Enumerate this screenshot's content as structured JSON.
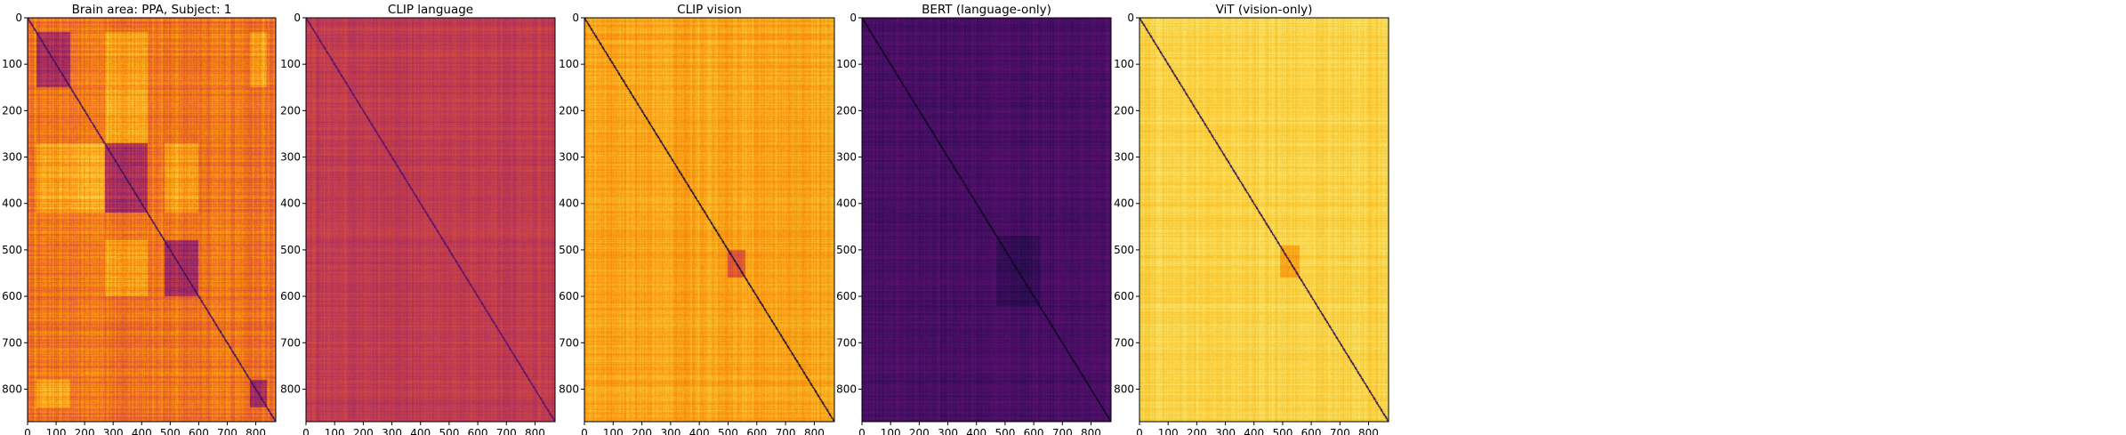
{
  "chart_data": [
    {
      "type": "heatmap",
      "title": "Brain area: PPA, Subject: 1",
      "colormap": "inferno",
      "n": 870,
      "xticks": [
        0,
        100,
        200,
        300,
        400,
        500,
        600,
        700,
        800
      ],
      "yticks": [
        0,
        100,
        200,
        300,
        400,
        500,
        600,
        700,
        800
      ],
      "base_level": 0.7,
      "diagonal_level": 0.2,
      "blocks": [
        {
          "start": 30,
          "end": 150,
          "level": 0.45
        },
        {
          "start": 270,
          "end": 420,
          "level": 0.48
        },
        {
          "start": 480,
          "end": 600,
          "level": 0.45
        },
        {
          "start": 780,
          "end": 840,
          "level": 0.45
        }
      ],
      "hot_blocks": [
        {
          "r0": 270,
          "r1": 420,
          "c0": 150,
          "c1": 270,
          "level": 0.82
        },
        {
          "r0": 150,
          "r1": 270,
          "c0": 270,
          "c1": 420,
          "level": 0.82
        },
        {
          "r0": 30,
          "r1": 150,
          "c0": 270,
          "c1": 420,
          "level": 0.8
        },
        {
          "r0": 270,
          "r1": 420,
          "c0": 30,
          "c1": 150,
          "level": 0.8
        },
        {
          "r0": 30,
          "r1": 150,
          "c0": 780,
          "c1": 840,
          "level": 0.8
        },
        {
          "r0": 780,
          "r1": 840,
          "c0": 30,
          "c1": 150,
          "level": 0.8
        },
        {
          "r0": 480,
          "r1": 600,
          "c0": 270,
          "c1": 420,
          "level": 0.8
        },
        {
          "r0": 270,
          "r1": 420,
          "c0": 480,
          "c1": 600,
          "level": 0.8
        }
      ],
      "noise": 0.12
    },
    {
      "type": "heatmap",
      "title": "CLIP language",
      "colormap": "inferno",
      "n": 870,
      "xticks": [
        0,
        100,
        200,
        300,
        400,
        500,
        600,
        700,
        800
      ],
      "yticks": [
        0,
        100,
        200,
        300,
        400,
        500,
        600,
        700,
        800
      ],
      "base_level": 0.52,
      "diagonal_level": 0.25,
      "blocks": [],
      "hot_blocks": [],
      "noise": 0.07
    },
    {
      "type": "heatmap",
      "title": "CLIP vision",
      "colormap": "inferno",
      "n": 870,
      "xticks": [
        0,
        100,
        200,
        300,
        400,
        500,
        600,
        700,
        800
      ],
      "yticks": [
        0,
        100,
        200,
        300,
        400,
        500,
        600,
        700,
        800
      ],
      "base_level": 0.8,
      "diagonal_level": 0.1,
      "blocks": [
        {
          "start": 500,
          "end": 560,
          "level": 0.62
        }
      ],
      "hot_blocks": [],
      "noise": 0.08
    },
    {
      "type": "heatmap",
      "title": "BERT (language-only)",
      "colormap": "inferno",
      "n": 870,
      "xticks": [
        0,
        100,
        200,
        300,
        400,
        500,
        600,
        700,
        800
      ],
      "yticks": [
        0,
        100,
        200,
        300,
        400,
        500,
        600,
        700,
        800
      ],
      "base_level": 0.22,
      "diagonal_level": 0.05,
      "blocks": [
        {
          "start": 470,
          "end": 620,
          "level": 0.17
        }
      ],
      "hot_blocks": [],
      "noise": 0.06
    },
    {
      "type": "heatmap",
      "title": "ViT (vision-only)",
      "colormap": "inferno",
      "n": 870,
      "xticks": [
        0,
        100,
        200,
        300,
        400,
        500,
        600,
        700,
        800
      ],
      "yticks": [
        0,
        100,
        200,
        300,
        400,
        500,
        600,
        700,
        800
      ],
      "base_level": 0.9,
      "diagonal_level": 0.15,
      "blocks": [
        {
          "start": 490,
          "end": 560,
          "level": 0.8
        }
      ],
      "hot_blocks": [],
      "noise": 0.05
    }
  ]
}
